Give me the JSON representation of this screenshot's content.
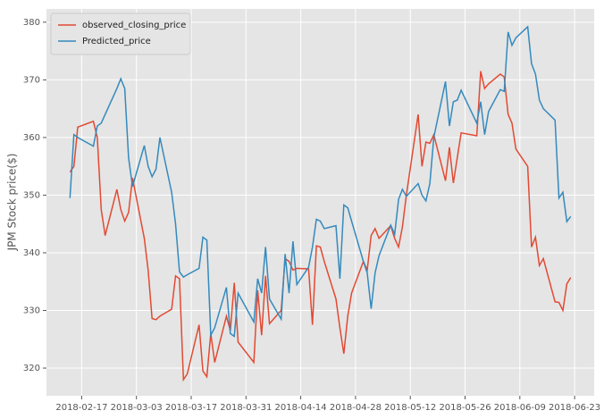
{
  "chart_data": {
    "type": "line",
    "y_label": "JPM Stock price($)",
    "x": [
      "2018-02-14",
      "2018-02-15",
      "2018-02-16",
      "2018-02-20",
      "2018-02-21",
      "2018-02-22",
      "2018-02-23",
      "2018-02-26",
      "2018-02-27",
      "2018-02-28",
      "2018-03-01",
      "2018-03-02",
      "2018-03-05",
      "2018-03-06",
      "2018-03-07",
      "2018-03-08",
      "2018-03-09",
      "2018-03-12",
      "2018-03-13",
      "2018-03-14",
      "2018-03-15",
      "2018-03-16",
      "2018-03-19",
      "2018-03-20",
      "2018-03-21",
      "2018-03-22",
      "2018-03-23",
      "2018-03-26",
      "2018-03-27",
      "2018-03-28",
      "2018-03-29",
      "2018-04-02",
      "2018-04-03",
      "2018-04-04",
      "2018-04-05",
      "2018-04-06",
      "2018-04-09",
      "2018-04-10",
      "2018-04-11",
      "2018-04-12",
      "2018-04-13",
      "2018-04-16",
      "2018-04-17",
      "2018-04-18",
      "2018-04-19",
      "2018-04-20",
      "2018-04-23",
      "2018-04-24",
      "2018-04-25",
      "2018-04-26",
      "2018-04-27",
      "2018-04-30",
      "2018-05-01",
      "2018-05-02",
      "2018-05-03",
      "2018-05-04",
      "2018-05-07",
      "2018-05-08",
      "2018-05-09",
      "2018-05-10",
      "2018-05-11",
      "2018-05-14",
      "2018-05-15",
      "2018-05-16",
      "2018-05-17",
      "2018-05-18",
      "2018-05-21",
      "2018-05-22",
      "2018-05-23",
      "2018-05-24",
      "2018-05-25",
      "2018-05-29",
      "2018-05-30",
      "2018-05-31",
      "2018-06-01",
      "2018-06-04",
      "2018-06-05",
      "2018-06-06",
      "2018-06-07",
      "2018-06-08",
      "2018-06-11",
      "2018-06-12",
      "2018-06-13",
      "2018-06-14",
      "2018-06-15",
      "2018-06-18",
      "2018-06-19",
      "2018-06-20",
      "2018-06-21",
      "2018-06-22"
    ],
    "series": [
      {
        "name": "observed_closing_price",
        "color": "#E24A33",
        "values": [
          354,
          355,
          361.8,
          362.8,
          360,
          347.5,
          343,
          351,
          347.5,
          345.5,
          347,
          353,
          342.5,
          337,
          328.6,
          328.4,
          329,
          330.2,
          336,
          335.5,
          318,
          319,
          327.5,
          319.5,
          318.5,
          326,
          321,
          329,
          326.5,
          334.8,
          324.5,
          321,
          333.5,
          325.7,
          336,
          327.7,
          330,
          339,
          338.5,
          337,
          337.3,
          337.2,
          327.5,
          341.2,
          341,
          338.5,
          332,
          327,
          322.5,
          329,
          333,
          338.5,
          337,
          343,
          344.2,
          342.5,
          344.7,
          342.5,
          341,
          344.5,
          350,
          364,
          355,
          359.2,
          359,
          360.5,
          352.5,
          358.3,
          352.1,
          356.5,
          360.8,
          360.3,
          371.5,
          368.5,
          369.3,
          371,
          370.5,
          364,
          362.5,
          358,
          355,
          341,
          342.7,
          337.8,
          339,
          331.5,
          331.4,
          330,
          334.6,
          335.7
        ]
      },
      {
        "name": "Predicted_price",
        "color": "#348ABD",
        "values": [
          349.5,
          360.5,
          360,
          358.5,
          362,
          362.5,
          364,
          368.5,
          370.2,
          368.5,
          356.5,
          351.5,
          358.6,
          355,
          353.2,
          354.5,
          360,
          350.5,
          345,
          336.7,
          335.8,
          336.2,
          337.3,
          342.7,
          342.2,
          325.7,
          327,
          334,
          326,
          325.5,
          333,
          328,
          335.5,
          333,
          341,
          332,
          328.5,
          339.8,
          333,
          342,
          334.5,
          337.5,
          341,
          345.8,
          345.5,
          344.2,
          344.7,
          335.5,
          348.3,
          347.8,
          345.5,
          338.5,
          336.5,
          330.3,
          336.5,
          339.5,
          344.8,
          343.2,
          349.3,
          351,
          349.8,
          352,
          350,
          349,
          352,
          360,
          369.7,
          362,
          366.2,
          366.5,
          368.2,
          362.5,
          366.2,
          360.5,
          364.5,
          368.3,
          368,
          378.3,
          376,
          377.3,
          379.2,
          372.8,
          371,
          366.5,
          365,
          363,
          349.5,
          350.5,
          345.4,
          346.3
        ]
      }
    ],
    "xlim": [
      "2018-02-08",
      "2018-06-28"
    ],
    "xticks": [
      "2018-02-17",
      "2018-03-03",
      "2018-03-17",
      "2018-03-31",
      "2018-04-14",
      "2018-04-28",
      "2018-05-12",
      "2018-05-26",
      "2018-06-09",
      "2018-06-23"
    ],
    "ylim": [
      315.2,
      382.3
    ],
    "yticks": [
      320,
      330,
      340,
      350,
      360,
      370,
      380
    ],
    "grid": true,
    "legend": "upper left"
  }
}
